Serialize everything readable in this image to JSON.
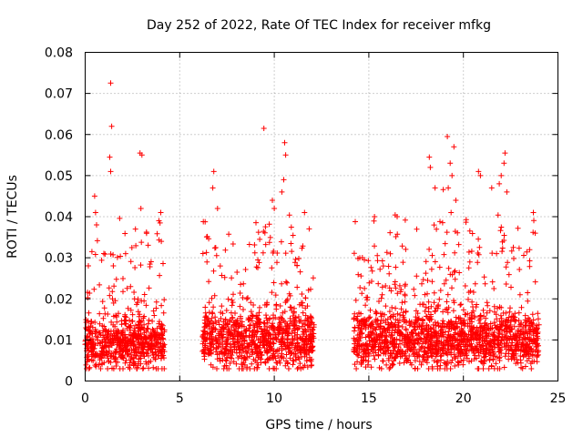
{
  "chart_data": {
    "type": "scatter",
    "title": "Day 252 of 2022, Rate Of TEC Index for receiver mfkg",
    "xlabel": "GPS time / hours",
    "ylabel": "ROTI / TECUs",
    "xlim": [
      0,
      25
    ],
    "ylim": [
      0,
      0.08
    ],
    "xticks": [
      0,
      5,
      10,
      15,
      20,
      25
    ],
    "xtick_labels": [
      "0",
      "5",
      "10",
      "15",
      "20",
      "25"
    ],
    "yticks": [
      0,
      0.01,
      0.02,
      0.03,
      0.04,
      0.05,
      0.06,
      0.07,
      0.08
    ],
    "ytick_labels": [
      "0",
      "0.01",
      "0.02",
      "0.03",
      "0.04",
      "0.05",
      "0.06",
      "0.07",
      "0.08"
    ],
    "grid": true,
    "marker": "+",
    "color": "#ff0000",
    "segments": [
      {
        "x_start": 0.0,
        "x_end": 4.2,
        "baseline": 0.009,
        "spread": 0.006
      },
      {
        "x_start": 6.2,
        "x_end": 12.1,
        "baseline": 0.01,
        "spread": 0.007
      },
      {
        "x_start": 14.2,
        "x_end": 24.0,
        "baseline": 0.01,
        "spread": 0.007
      }
    ],
    "highlights": [
      {
        "x": 1.35,
        "y": 0.0725
      },
      {
        "x": 1.4,
        "y": 0.062
      },
      {
        "x": 1.3,
        "y": 0.0545
      },
      {
        "x": 1.35,
        "y": 0.051
      },
      {
        "x": 0.5,
        "y": 0.045
      },
      {
        "x": 0.55,
        "y": 0.041
      },
      {
        "x": 0.6,
        "y": 0.038
      },
      {
        "x": 2.9,
        "y": 0.0555
      },
      {
        "x": 3.0,
        "y": 0.055
      },
      {
        "x": 2.95,
        "y": 0.042
      },
      {
        "x": 4.0,
        "y": 0.041
      },
      {
        "x": 3.9,
        "y": 0.039
      },
      {
        "x": 6.8,
        "y": 0.051
      },
      {
        "x": 6.75,
        "y": 0.047
      },
      {
        "x": 7.0,
        "y": 0.042
      },
      {
        "x": 9.45,
        "y": 0.0615
      },
      {
        "x": 10.55,
        "y": 0.058
      },
      {
        "x": 10.6,
        "y": 0.055
      },
      {
        "x": 10.5,
        "y": 0.049
      },
      {
        "x": 10.4,
        "y": 0.046
      },
      {
        "x": 9.9,
        "y": 0.044
      },
      {
        "x": 10.0,
        "y": 0.042
      },
      {
        "x": 11.6,
        "y": 0.041
      },
      {
        "x": 18.2,
        "y": 0.0545
      },
      {
        "x": 18.25,
        "y": 0.052
      },
      {
        "x": 19.15,
        "y": 0.0595
      },
      {
        "x": 19.5,
        "y": 0.057
      },
      {
        "x": 19.3,
        "y": 0.053
      },
      {
        "x": 19.4,
        "y": 0.05
      },
      {
        "x": 19.2,
        "y": 0.047
      },
      {
        "x": 19.6,
        "y": 0.044
      },
      {
        "x": 19.35,
        "y": 0.041
      },
      {
        "x": 20.8,
        "y": 0.051
      },
      {
        "x": 20.9,
        "y": 0.05
      },
      {
        "x": 21.5,
        "y": 0.047
      },
      {
        "x": 22.2,
        "y": 0.0555
      },
      {
        "x": 22.15,
        "y": 0.053
      },
      {
        "x": 22.0,
        "y": 0.05
      },
      {
        "x": 21.9,
        "y": 0.048
      },
      {
        "x": 22.3,
        "y": 0.046
      },
      {
        "x": 18.5,
        "y": 0.047
      },
      {
        "x": 16.5,
        "y": 0.04
      },
      {
        "x": 15.3,
        "y": 0.04
      },
      {
        "x": 23.7,
        "y": 0.041
      },
      {
        "x": 23.8,
        "y": 0.036
      }
    ]
  }
}
